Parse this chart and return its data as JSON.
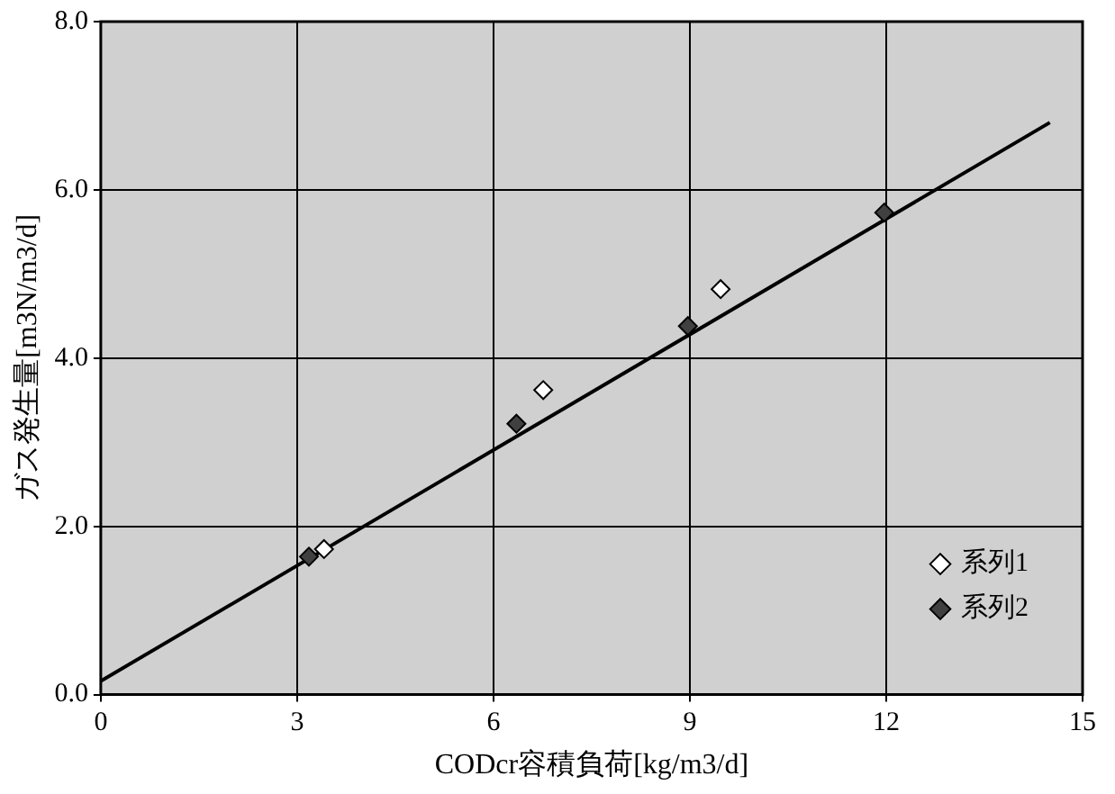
{
  "chart_data": {
    "type": "scatter",
    "xlabel": "CODcr容積負荷[kg/m3/d]",
    "ylabel": "ガス発生量[m3N/m3/d]",
    "xlim": [
      0,
      15
    ],
    "xticks": [
      0,
      3,
      6,
      9,
      12,
      15
    ],
    "ylim": [
      0,
      8
    ],
    "yticks": [
      {
        "value": 0,
        "label": "0.0"
      },
      {
        "value": 2,
        "label": "2.0"
      },
      {
        "value": 4,
        "label": "4.0"
      },
      {
        "value": 6,
        "label": "6.0"
      },
      {
        "value": 8,
        "label": "8.0"
      }
    ],
    "grid": true,
    "legend": "bottom right",
    "marker": "diamond",
    "series": [
      {
        "name": "系列1",
        "color": "#ffffff",
        "x": [
          3.41,
          6.76,
          9.47
        ],
        "values": [
          1.73,
          3.62,
          4.82
        ]
      },
      {
        "name": "系列2",
        "color": "#404040",
        "x": [
          3.18,
          6.35,
          8.97,
          11.97
        ],
        "values": [
          1.64,
          3.22,
          4.38,
          5.73
        ]
      },
      {
        "type": "line",
        "color": "#000000",
        "x": [
          0,
          14.5
        ],
        "values": [
          0.16,
          6.8
        ],
        "marker": "none"
      }
    ]
  }
}
